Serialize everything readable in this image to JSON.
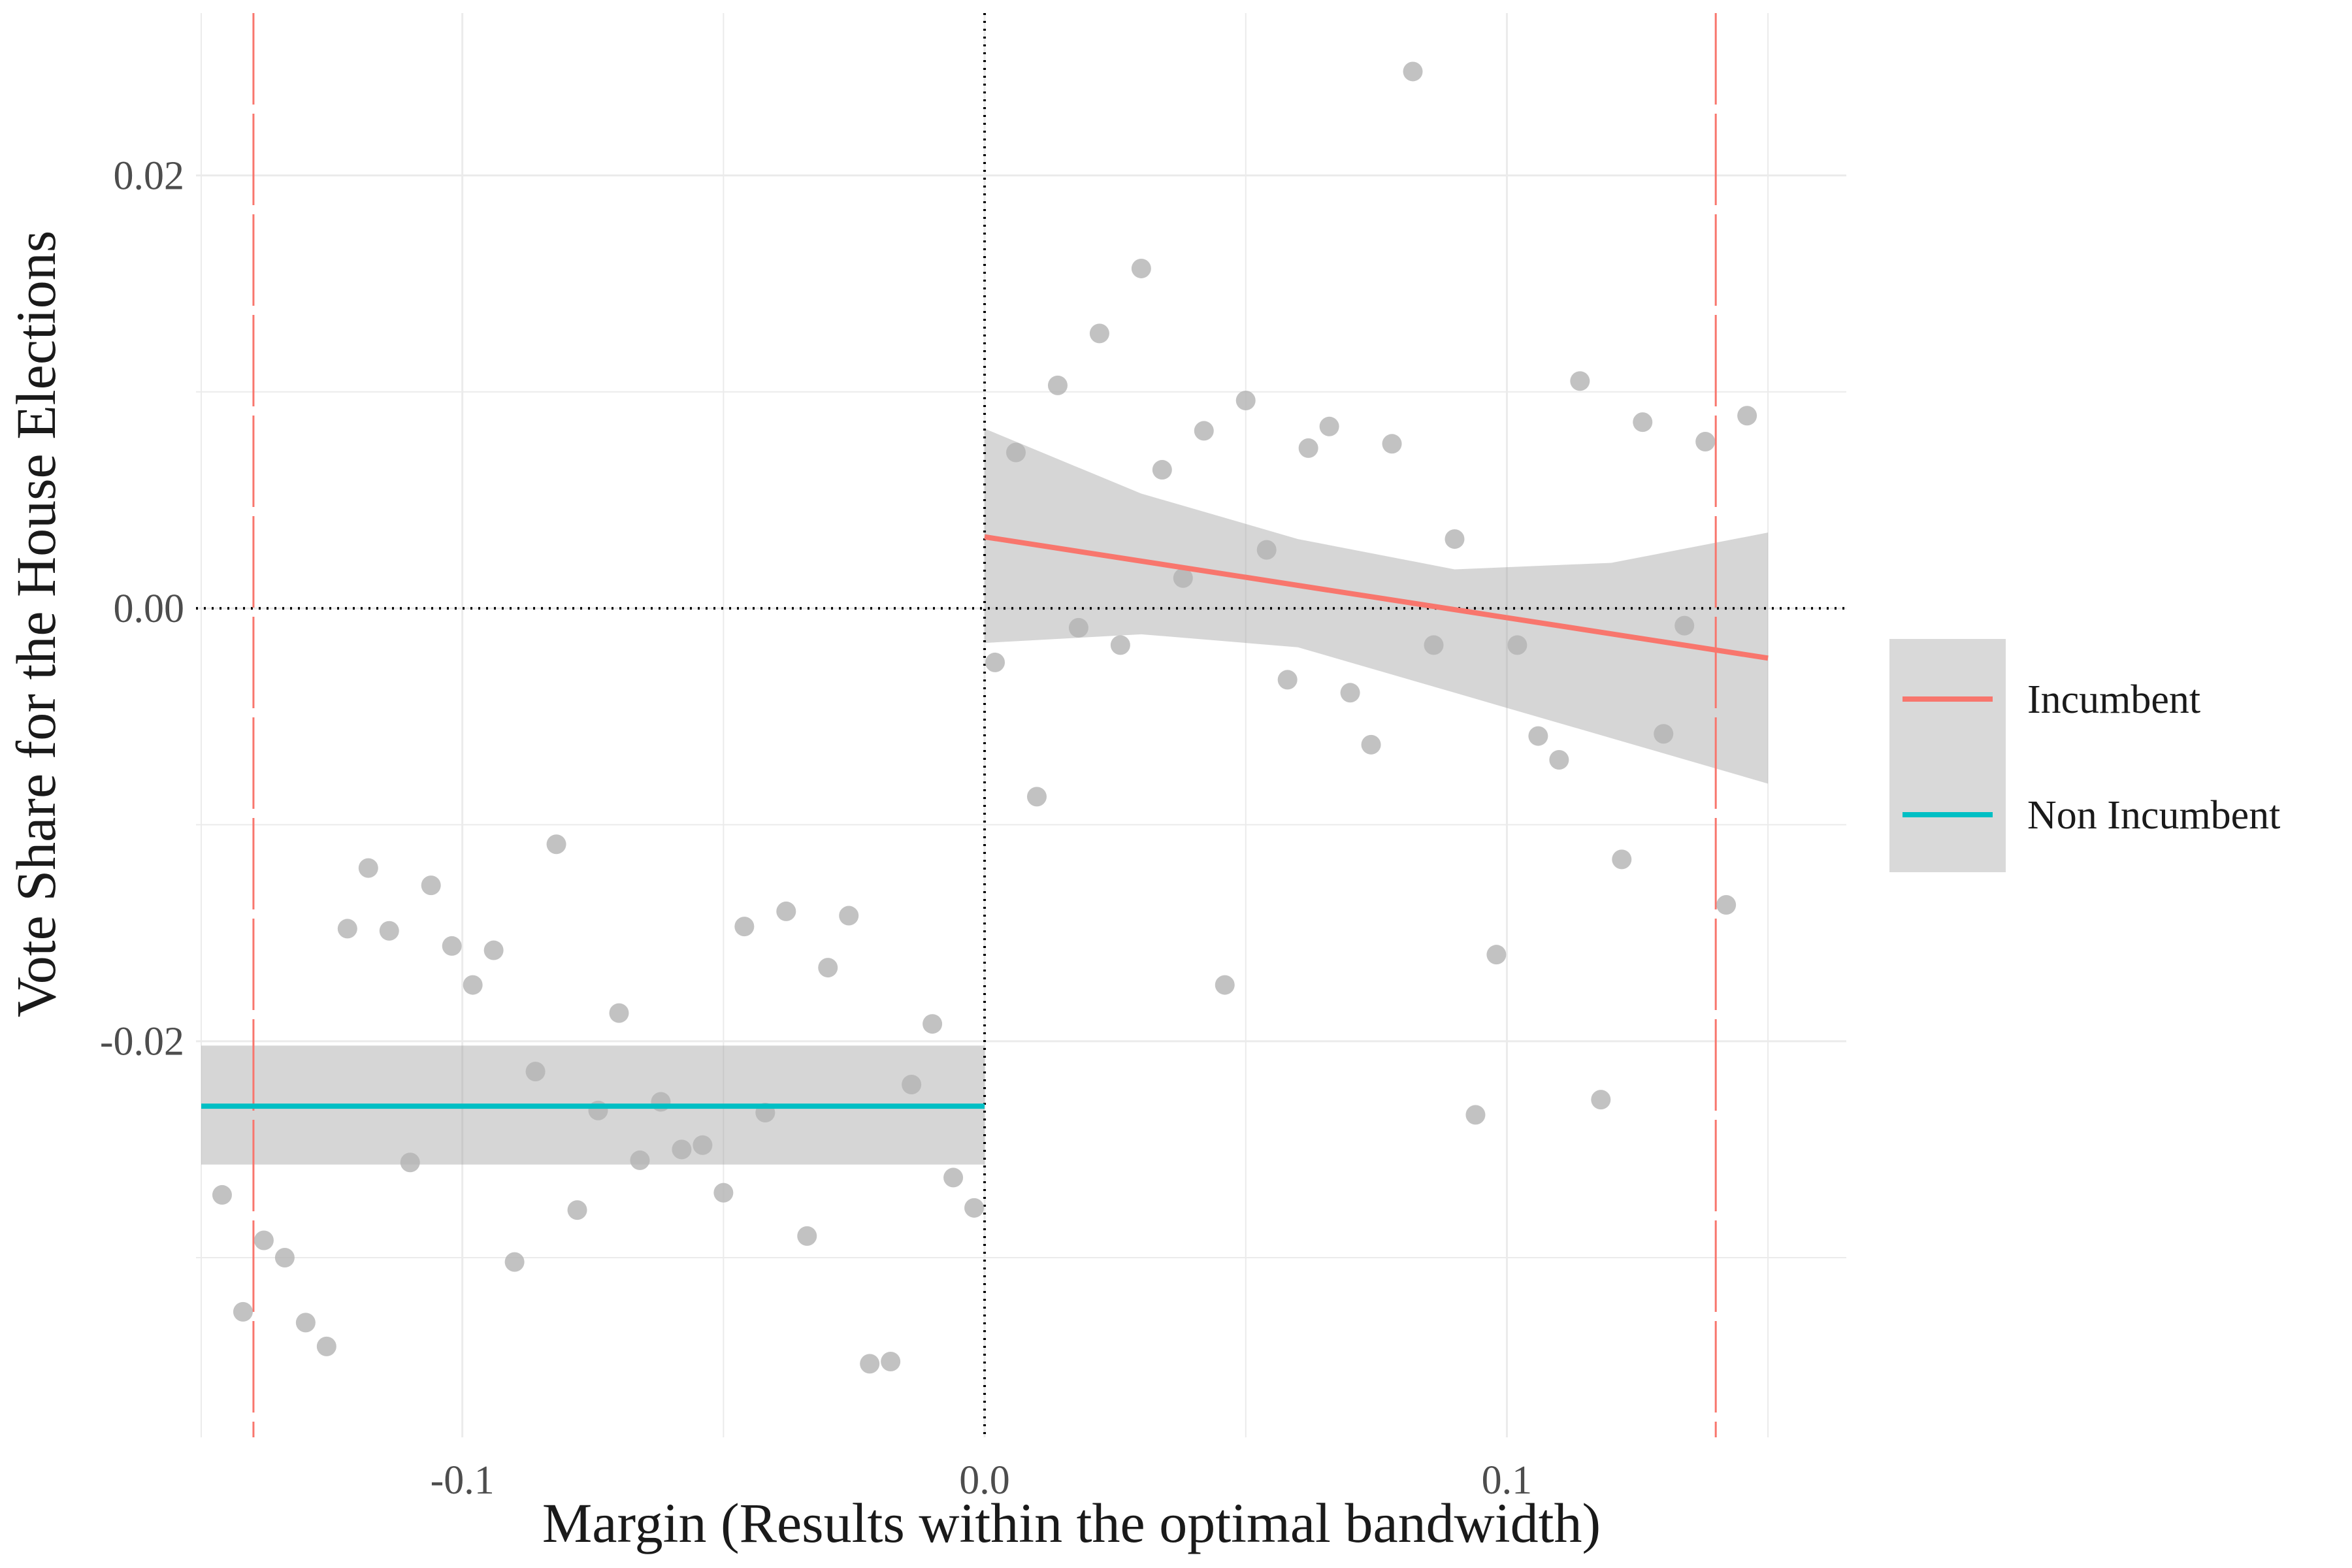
{
  "chart_data": {
    "type": "scatter",
    "xlabel": "Margin (Results within the optimal bandwidth)",
    "ylabel": "Vote Share for the House Elections",
    "xlim": [
      -0.151,
      0.165
    ],
    "ylim": [
      -0.0383,
      0.0275
    ],
    "x_ticks": [
      -0.1,
      0.0,
      0.1
    ],
    "x_tick_labels": [
      "-0.1",
      "0.0",
      "0.1"
    ],
    "y_ticks": [
      -0.02,
      0.0,
      0.02
    ],
    "y_tick_labels": [
      "-0.02",
      "0.00",
      "0.02"
    ],
    "grid": true,
    "reference_lines": {
      "zero_x": 0.0,
      "zero_y": 0.0,
      "bandwidth": [
        -0.14,
        0.14
      ]
    },
    "points": [
      {
        "x": -0.146,
        "y": -0.0271
      },
      {
        "x": -0.142,
        "y": -0.0325
      },
      {
        "x": -0.138,
        "y": -0.0292
      },
      {
        "x": -0.134,
        "y": -0.03
      },
      {
        "x": -0.13,
        "y": -0.033
      },
      {
        "x": -0.126,
        "y": -0.0341
      },
      {
        "x": -0.122,
        "y": -0.0148
      },
      {
        "x": -0.118,
        "y": -0.012
      },
      {
        "x": -0.114,
        "y": -0.0149
      },
      {
        "x": -0.11,
        "y": -0.0256
      },
      {
        "x": -0.106,
        "y": -0.0128
      },
      {
        "x": -0.102,
        "y": -0.0156
      },
      {
        "x": -0.098,
        "y": -0.0174
      },
      {
        "x": -0.094,
        "y": -0.0158
      },
      {
        "x": -0.09,
        "y": -0.0302
      },
      {
        "x": -0.086,
        "y": -0.0214
      },
      {
        "x": -0.082,
        "y": -0.0109
      },
      {
        "x": -0.078,
        "y": -0.0278
      },
      {
        "x": -0.074,
        "y": -0.0232
      },
      {
        "x": -0.07,
        "y": -0.0187
      },
      {
        "x": -0.066,
        "y": -0.0255
      },
      {
        "x": -0.062,
        "y": -0.0228
      },
      {
        "x": -0.058,
        "y": -0.025
      },
      {
        "x": -0.054,
        "y": -0.0248
      },
      {
        "x": -0.05,
        "y": -0.027
      },
      {
        "x": -0.046,
        "y": -0.0147
      },
      {
        "x": -0.042,
        "y": -0.0233
      },
      {
        "x": -0.038,
        "y": -0.014
      },
      {
        "x": -0.034,
        "y": -0.029
      },
      {
        "x": -0.03,
        "y": -0.0166
      },
      {
        "x": -0.026,
        "y": -0.0142
      },
      {
        "x": -0.022,
        "y": -0.0349
      },
      {
        "x": -0.018,
        "y": -0.0348
      },
      {
        "x": -0.014,
        "y": -0.022
      },
      {
        "x": -0.01,
        "y": -0.0192
      },
      {
        "x": -0.006,
        "y": -0.0263
      },
      {
        "x": -0.002,
        "y": -0.0277
      },
      {
        "x": 0.002,
        "y": -0.0025
      },
      {
        "x": 0.006,
        "y": 0.0072
      },
      {
        "x": 0.01,
        "y": -0.0087
      },
      {
        "x": 0.014,
        "y": 0.0103
      },
      {
        "x": 0.018,
        "y": -0.0009
      },
      {
        "x": 0.022,
        "y": 0.0127
      },
      {
        "x": 0.026,
        "y": -0.0017
      },
      {
        "x": 0.03,
        "y": 0.0157
      },
      {
        "x": 0.034,
        "y": 0.0064
      },
      {
        "x": 0.038,
        "y": 0.0014
      },
      {
        "x": 0.042,
        "y": 0.0082
      },
      {
        "x": 0.046,
        "y": -0.0174
      },
      {
        "x": 0.05,
        "y": 0.0096
      },
      {
        "x": 0.054,
        "y": 0.0027
      },
      {
        "x": 0.058,
        "y": -0.0033
      },
      {
        "x": 0.062,
        "y": 0.0074
      },
      {
        "x": 0.066,
        "y": 0.0084
      },
      {
        "x": 0.07,
        "y": -0.0039
      },
      {
        "x": 0.074,
        "y": -0.0063
      },
      {
        "x": 0.078,
        "y": 0.0076
      },
      {
        "x": 0.082,
        "y": 0.0248
      },
      {
        "x": 0.086,
        "y": -0.0017
      },
      {
        "x": 0.09,
        "y": 0.0032
      },
      {
        "x": 0.094,
        "y": -0.0234
      },
      {
        "x": 0.098,
        "y": -0.016
      },
      {
        "x": 0.102,
        "y": -0.0017
      },
      {
        "x": 0.106,
        "y": -0.0059
      },
      {
        "x": 0.11,
        "y": -0.007
      },
      {
        "x": 0.114,
        "y": 0.0105
      },
      {
        "x": 0.118,
        "y": -0.0227
      },
      {
        "x": 0.122,
        "y": -0.0116
      },
      {
        "x": 0.126,
        "y": 0.0086
      },
      {
        "x": 0.13,
        "y": -0.0058
      },
      {
        "x": 0.134,
        "y": -0.0008
      },
      {
        "x": 0.138,
        "y": 0.0077
      },
      {
        "x": 0.142,
        "y": -0.0137
      },
      {
        "x": 0.146,
        "y": 0.0089
      }
    ],
    "series": [
      {
        "name": "Incumbent",
        "color": "#F8766D",
        "x": [
          0.0,
          0.15
        ],
        "y": [
          0.0033,
          -0.0023
        ],
        "ci_x": [
          0.0,
          0.03,
          0.06,
          0.09,
          0.12,
          0.15
        ],
        "ci_lower": [
          -0.0016,
          -0.0012,
          -0.0018,
          -0.0039,
          -0.006,
          -0.0081
        ],
        "ci_upper": [
          0.0083,
          0.0053,
          0.0032,
          0.0018,
          0.0021,
          0.0035
        ]
      },
      {
        "name": "Non Incumbent",
        "color": "#00BFC4",
        "x": [
          -0.15,
          0.0
        ],
        "y": [
          -0.023,
          -0.023
        ],
        "ci_x": [
          -0.15,
          0.0
        ],
        "ci_lower": [
          -0.0257,
          -0.0257
        ],
        "ci_upper": [
          -0.0202,
          -0.0202
        ]
      }
    ],
    "legend": {
      "position": "right",
      "items": [
        {
          "label": "Incumbent",
          "color": "#F8766D"
        },
        {
          "label": "Non Incumbent",
          "color": "#00BFC4"
        }
      ]
    }
  }
}
